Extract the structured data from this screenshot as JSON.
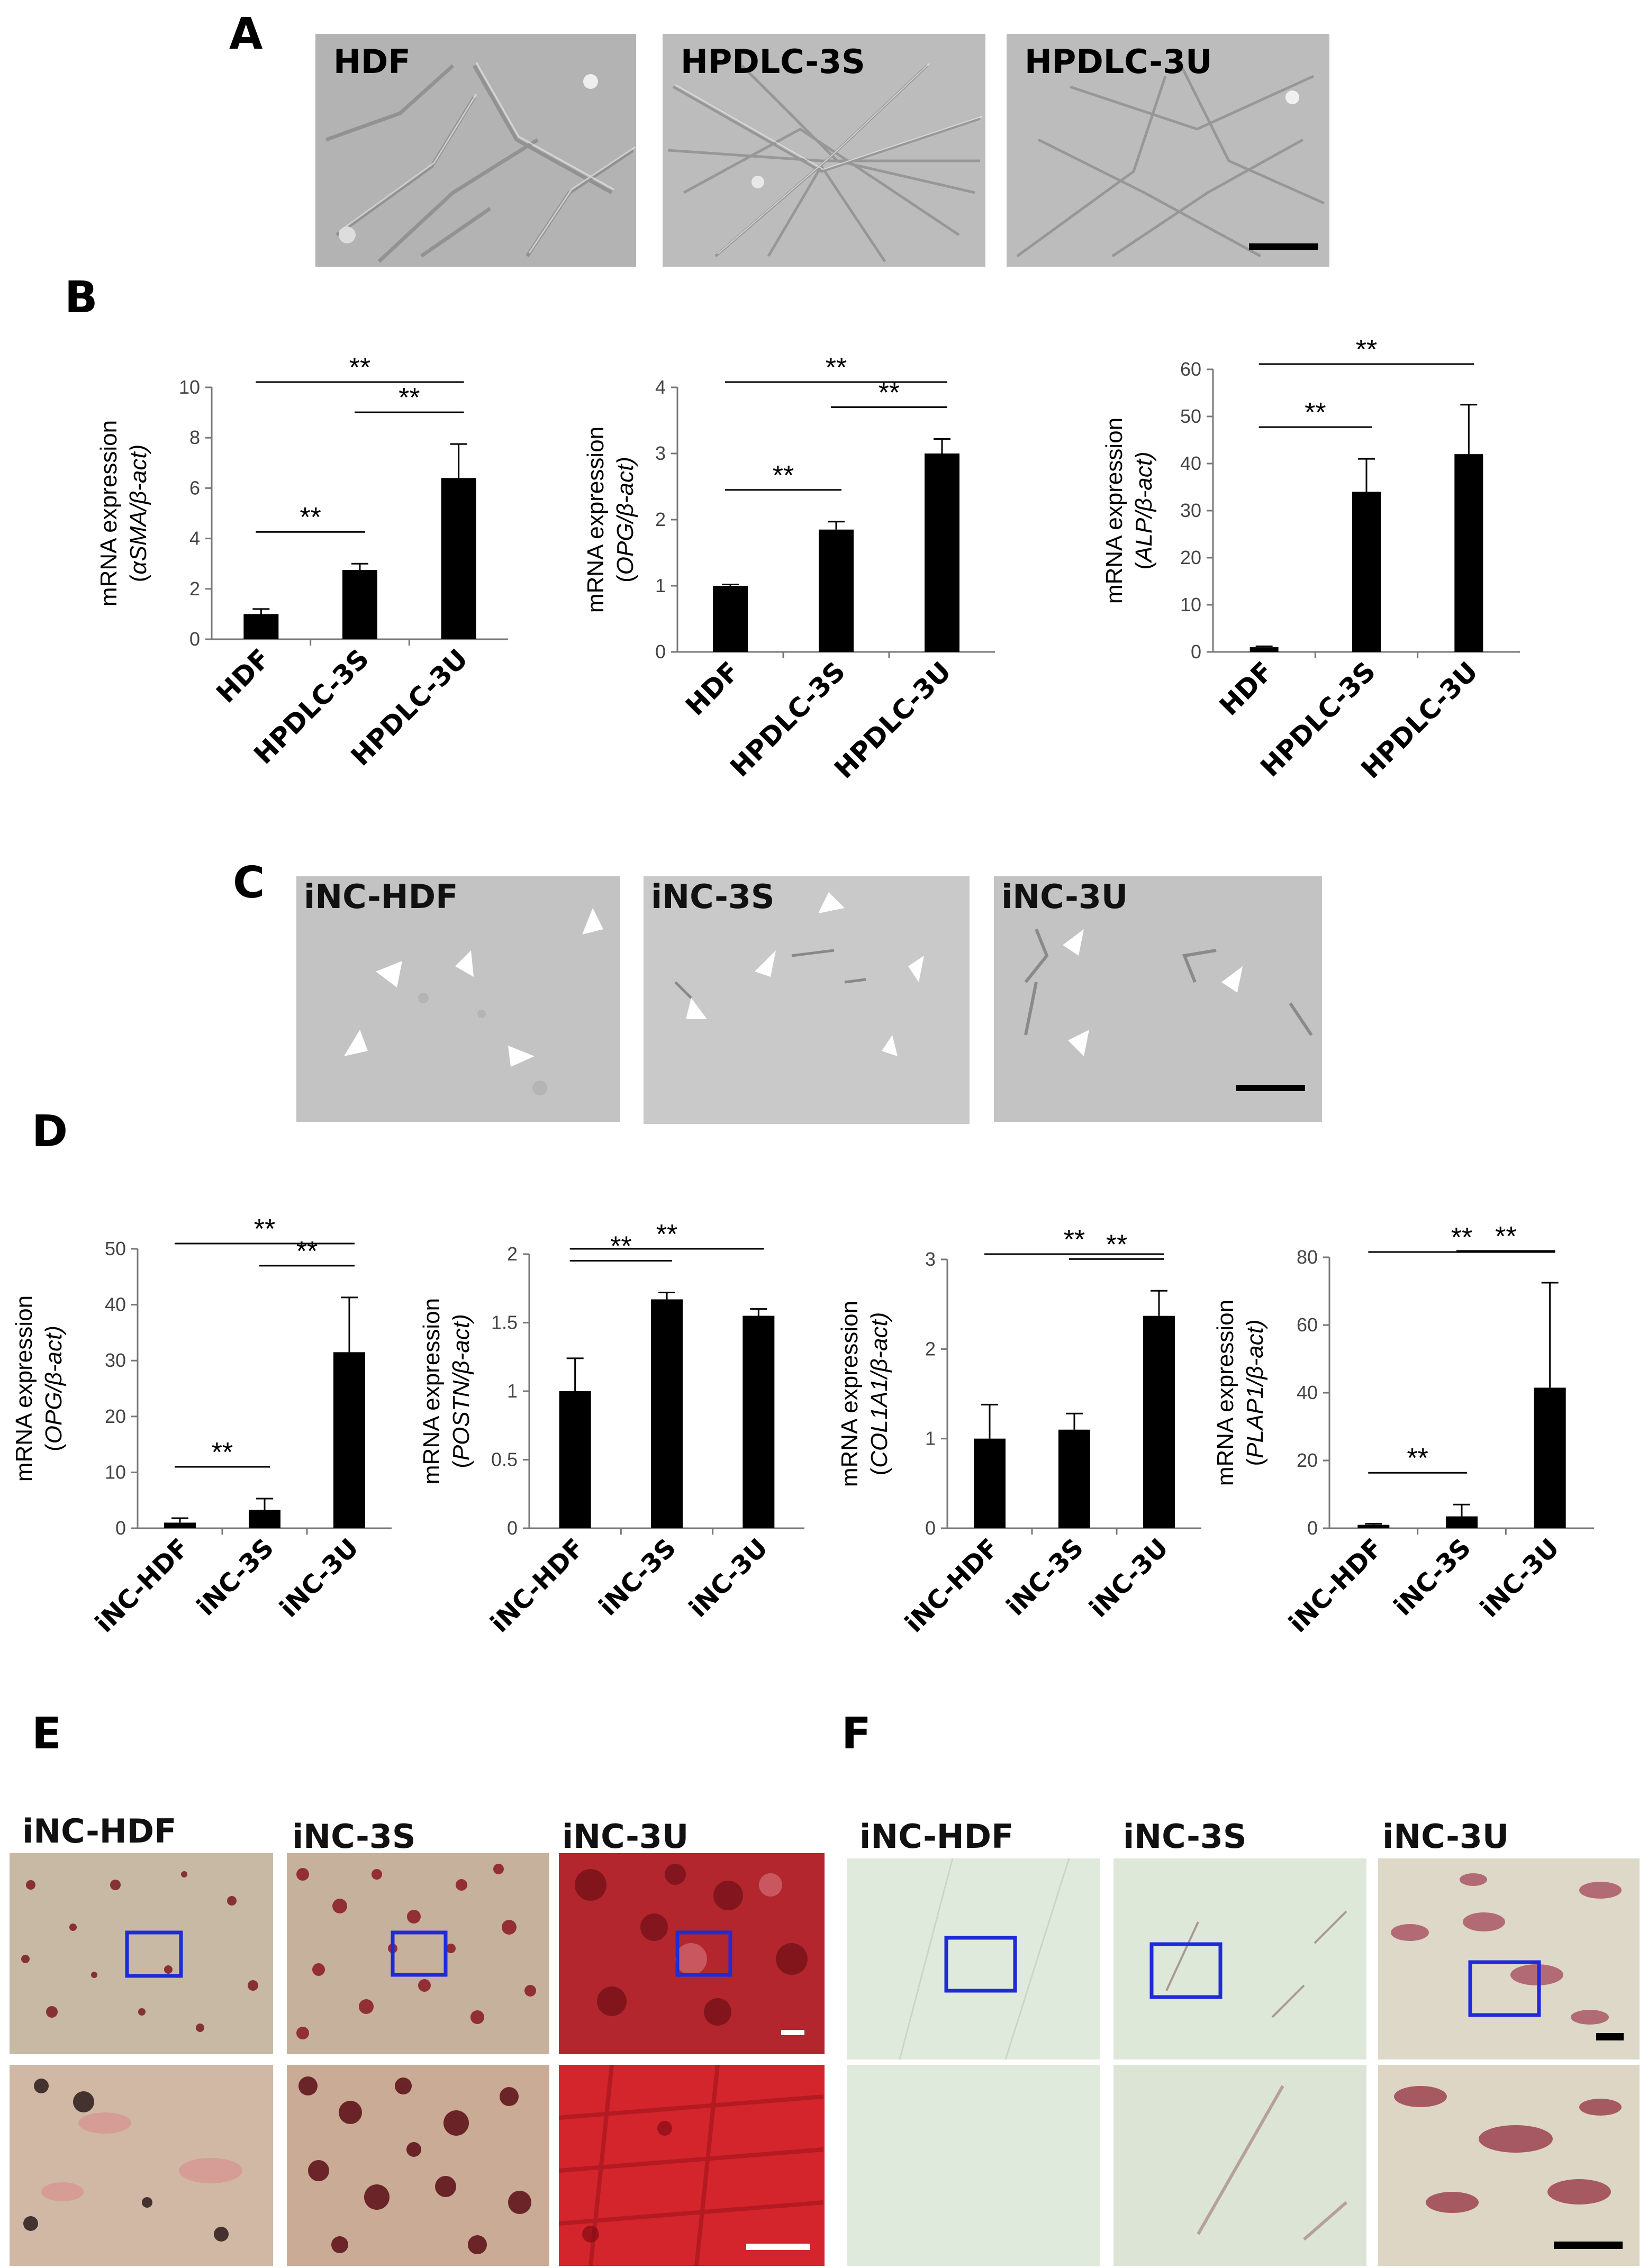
{
  "panels": {
    "A": "A",
    "B": "B",
    "C": "C",
    "D": "D",
    "E": "E",
    "F": "F"
  },
  "panel_a": {
    "images": [
      {
        "label": "HDF"
      },
      {
        "label": "HPDLC-3S"
      },
      {
        "label": "HPDLC-3U"
      }
    ]
  },
  "panel_c": {
    "images": [
      {
        "label": "iNC-HDF"
      },
      {
        "label": "iNC-3S"
      },
      {
        "label": "iNC-3U"
      }
    ]
  },
  "panel_e": {
    "labels": [
      "iNC-HDF",
      "iNC-3S",
      "iNC-3U"
    ]
  },
  "panel_f": {
    "labels": [
      "iNC-HDF",
      "iNC-3S",
      "iNC-3U"
    ]
  },
  "colors": {
    "bar": "#000000",
    "inset_box": "#1f2bd6",
    "phase_bg": "#b8b8b8",
    "alizarin": "#b01a2a",
    "alp_bg": "#dfeadc"
  },
  "chart_data": [
    {
      "type": "bar",
      "panel": "B",
      "categories": [
        "HDF",
        "HPDLC-3S",
        "HPDLC-3U"
      ],
      "values": [
        1.0,
        2.75,
        6.4
      ],
      "errors": [
        0.2,
        0.25,
        1.35
      ],
      "ylim": [
        0,
        10
      ],
      "yticks": [
        "0",
        "2",
        "4",
        "6",
        "8",
        "10"
      ],
      "ylabel_line1": "mRNA expression",
      "ylabel_line2_prefix": "(",
      "ylabel_gene": "αSMA",
      "ylabel_suffix": "/β-act)",
      "significance": [
        {
          "from": 0,
          "to": 1,
          "label": "**"
        },
        {
          "from": 1,
          "to": 2,
          "label": "**"
        },
        {
          "from": 0,
          "to": 2,
          "label": "**"
        }
      ]
    },
    {
      "type": "bar",
      "panel": "B",
      "categories": [
        "HDF",
        "HPDLC-3S",
        "HPDLC-3U"
      ],
      "values": [
        1.0,
        1.85,
        3.0
      ],
      "errors": [
        0.02,
        0.12,
        0.22
      ],
      "ylim": [
        0,
        4
      ],
      "yticks": [
        "0",
        "1",
        "2",
        "3",
        "4"
      ],
      "ylabel_line1": "mRNA expression",
      "ylabel_line2_prefix": "(",
      "ylabel_gene": "OPG",
      "ylabel_suffix": "/β-act)",
      "significance": [
        {
          "from": 0,
          "to": 1,
          "label": "**"
        },
        {
          "from": 1,
          "to": 2,
          "label": "**"
        },
        {
          "from": 0,
          "to": 2,
          "label": "**"
        }
      ]
    },
    {
      "type": "bar",
      "panel": "B",
      "categories": [
        "HDF",
        "HPDLC-3S",
        "HPDLC-3U"
      ],
      "values": [
        1.0,
        34.0,
        42.0
      ],
      "errors": [
        0.2,
        7.0,
        10.5
      ],
      "ylim": [
        0,
        60
      ],
      "yticks": [
        "0",
        "10",
        "20",
        "30",
        "40",
        "50",
        "60"
      ],
      "ylabel_line1": "mRNA expression",
      "ylabel_line2_prefix": "(",
      "ylabel_gene": "ALP",
      "ylabel_suffix": "/β-act)",
      "significance": [
        {
          "from": 0,
          "to": 1,
          "label": "**"
        },
        {
          "from": 0,
          "to": 2,
          "label": "**"
        }
      ]
    },
    {
      "type": "bar",
      "panel": "D",
      "categories": [
        "iNC-HDF",
        "iNC-3S",
        "iNC-3U"
      ],
      "values": [
        1.0,
        3.3,
        31.5
      ],
      "errors": [
        0.8,
        2.0,
        9.8
      ],
      "ylim": [
        0,
        50
      ],
      "yticks": [
        "0",
        "10",
        "20",
        "30",
        "40",
        "50"
      ],
      "ylabel_line1": "mRNA expression",
      "ylabel_line2_prefix": "(",
      "ylabel_gene": "OPG",
      "ylabel_suffix": "/β-act)",
      "significance": [
        {
          "from": 0,
          "to": 1,
          "label": "**"
        },
        {
          "from": 1,
          "to": 2,
          "label": "**"
        },
        {
          "from": 0,
          "to": 2,
          "label": "**"
        }
      ]
    },
    {
      "type": "bar",
      "panel": "D",
      "categories": [
        "iNC-HDF",
        "iNC-3S",
        "iNC-3U"
      ],
      "values": [
        1.0,
        1.67,
        1.55
      ],
      "errors": [
        0.24,
        0.05,
        0.05
      ],
      "ylim": [
        0,
        2
      ],
      "yticks": [
        "0",
        "0.5",
        "1",
        "1.5",
        "2"
      ],
      "ylabel_line1": "mRNA expression",
      "ylabel_line2_prefix": "(",
      "ylabel_gene": "POSTN",
      "ylabel_suffix": "/β-act)",
      "significance": [
        {
          "from": 0,
          "to": 1,
          "label": "**"
        },
        {
          "from": 0,
          "to": 2,
          "label": "**"
        }
      ]
    },
    {
      "type": "bar",
      "panel": "D",
      "categories": [
        "iNC-HDF",
        "iNC-3S",
        "iNC-3U"
      ],
      "values": [
        1.0,
        1.1,
        2.37
      ],
      "errors": [
        0.38,
        0.18,
        0.28
      ],
      "ylim": [
        0,
        3
      ],
      "yticks": [
        "0",
        "1",
        "2",
        "3"
      ],
      "ylabel_line1": "mRNA expression",
      "ylabel_line2_prefix": "(",
      "ylabel_gene": "COL1A1",
      "ylabel_suffix": "/β-act)",
      "significance": [
        {
          "from": 1,
          "to": 2,
          "label": "**"
        },
        {
          "from": 0,
          "to": 2,
          "label": "**"
        }
      ]
    },
    {
      "type": "bar",
      "panel": "D",
      "categories": [
        "iNC-HDF",
        "iNC-3S",
        "iNC-3U"
      ],
      "values": [
        1.0,
        3.5,
        41.5
      ],
      "errors": [
        0.3,
        3.5,
        31.0
      ],
      "ylim": [
        0,
        80
      ],
      "yticks": [
        "0",
        "20",
        "40",
        "60",
        "80"
      ],
      "ylabel_line1": "mRNA expression",
      "ylabel_line2_prefix": "(",
      "ylabel_gene": "PLAP1",
      "ylabel_suffix": "/β-act)",
      "significance": [
        {
          "from": 0,
          "to": 1,
          "label": "**"
        },
        {
          "from": 1,
          "to": 2,
          "label": "**"
        },
        {
          "from": 0,
          "to": 2,
          "label": "**"
        }
      ]
    }
  ]
}
